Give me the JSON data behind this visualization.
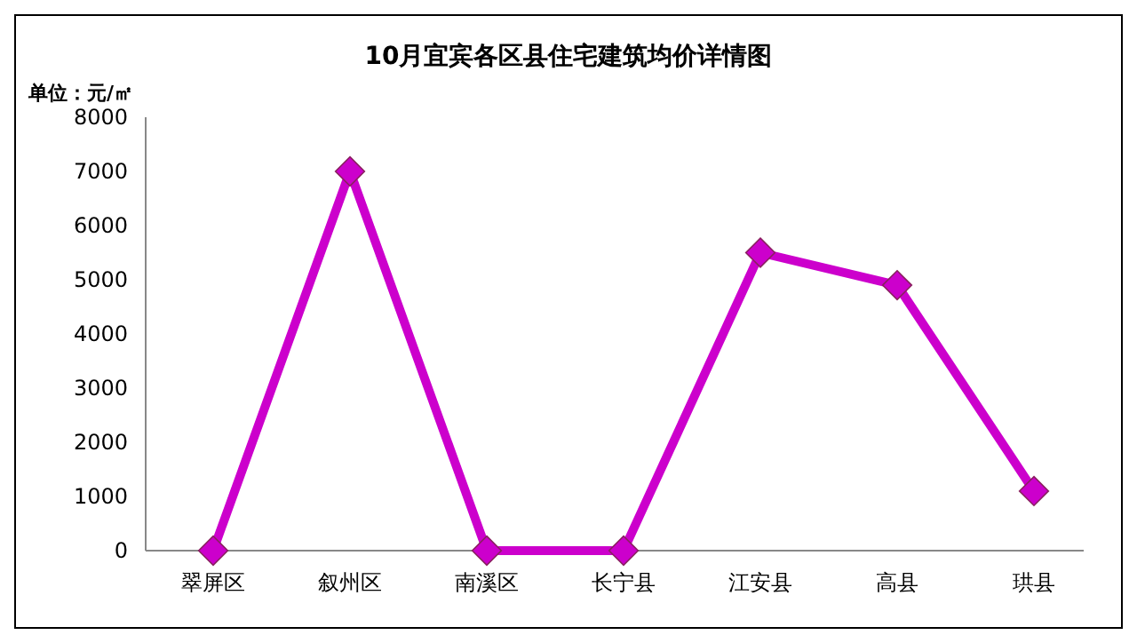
{
  "chart_data": {
    "type": "line",
    "title": "10月宜宾各区县住宅建筑均价详情图",
    "ylabel": "单位：元/㎡",
    "categories": [
      "翠屏区",
      "叙州区",
      "南溪区",
      "长宁县",
      "江安县",
      "高县",
      "珙县"
    ],
    "series": [
      {
        "color": "#cc00cc",
        "values": [
          0,
          7000,
          0,
          0,
          5500,
          4900,
          1100
        ]
      }
    ],
    "ylim": [
      0,
      8000
    ],
    "yticks": [
      0,
      1000,
      2000,
      3000,
      4000,
      5000,
      6000,
      7000,
      8000
    ],
    "grid": false,
    "marker": "diamond",
    "line_style": "solid"
  }
}
